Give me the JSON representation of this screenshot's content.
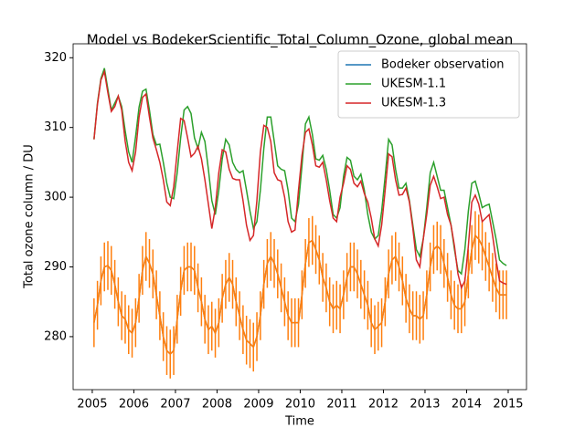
{
  "chart_data": {
    "type": "line",
    "title": "Model vs BodekerScientific_Total_Column_Ozone, global mean",
    "xlabel": "Time",
    "ylabel": "Total ozone column / DU",
    "xlim": [
      2004.54,
      2015.44
    ],
    "ylim": [
      272.4,
      322
    ],
    "xticks": [
      2005,
      2006,
      2007,
      2008,
      2009,
      2010,
      2011,
      2012,
      2013,
      2014,
      2015
    ],
    "yticks": [
      280,
      290,
      300,
      310,
      320
    ],
    "legend": "upper right",
    "x": [
      2005.042,
      2005.125,
      2005.208,
      2005.292,
      2005.375,
      2005.458,
      2005.542,
      2005.625,
      2005.708,
      2005.792,
      2005.875,
      2005.958,
      2006.042,
      2006.125,
      2006.208,
      2006.292,
      2006.375,
      2006.458,
      2006.542,
      2006.625,
      2006.708,
      2006.792,
      2006.875,
      2006.958,
      2007.042,
      2007.125,
      2007.208,
      2007.292,
      2007.375,
      2007.458,
      2007.542,
      2007.625,
      2007.708,
      2007.792,
      2007.875,
      2007.958,
      2008.042,
      2008.125,
      2008.208,
      2008.292,
      2008.375,
      2008.458,
      2008.542,
      2008.625,
      2008.708,
      2008.792,
      2008.875,
      2008.958,
      2009.042,
      2009.125,
      2009.208,
      2009.292,
      2009.375,
      2009.458,
      2009.542,
      2009.625,
      2009.708,
      2009.792,
      2009.875,
      2009.958,
      2010.042,
      2010.125,
      2010.208,
      2010.292,
      2010.375,
      2010.458,
      2010.542,
      2010.625,
      2010.708,
      2010.792,
      2010.875,
      2010.958,
      2011.042,
      2011.125,
      2011.208,
      2011.292,
      2011.375,
      2011.458,
      2011.542,
      2011.625,
      2011.708,
      2011.792,
      2011.875,
      2011.958,
      2012.042,
      2012.125,
      2012.208,
      2012.292,
      2012.375,
      2012.458,
      2012.542,
      2012.625,
      2012.708,
      2012.792,
      2012.875,
      2012.958,
      2013.042,
      2013.125,
      2013.208,
      2013.292,
      2013.375,
      2013.458,
      2013.542,
      2013.625,
      2013.708,
      2013.792,
      2013.875,
      2013.958,
      2014.042,
      2014.125,
      2014.208,
      2014.292,
      2014.375,
      2014.458,
      2014.542,
      2014.625,
      2014.708,
      2014.792,
      2014.875,
      2014.958
    ],
    "series": [
      {
        "name": "Bodeker observation",
        "color": "#1f77b4",
        "error_color": "#ff7f0e",
        "error": 3.5,
        "values": [
          282,
          284.5,
          288,
          290,
          290.2,
          289.5,
          287.5,
          285,
          283,
          282.5,
          281,
          280.5,
          282,
          285.5,
          289.5,
          291.5,
          290.5,
          289,
          286,
          283,
          280,
          278,
          277.5,
          278,
          282.5,
          286.5,
          289.5,
          290,
          290,
          289.5,
          287,
          285,
          282.5,
          281,
          281.5,
          280.5,
          282,
          285.5,
          287.5,
          288.5,
          287.5,
          285,
          283,
          281,
          279.5,
          279,
          278.5,
          280,
          283,
          287.5,
          290.5,
          291.5,
          290.5,
          289,
          287,
          285,
          283,
          282,
          282,
          282,
          286,
          290.5,
          293.5,
          293.8,
          292.5,
          291,
          288.5,
          287,
          285,
          284,
          284.5,
          284,
          286,
          288.5,
          290,
          290,
          289,
          287.5,
          286,
          284.5,
          282,
          281,
          281.5,
          282,
          285,
          289,
          291,
          291.5,
          290,
          288,
          285.5,
          284,
          283,
          283,
          282.5,
          283,
          286,
          290,
          292.5,
          293,
          292.5,
          290.5,
          288.5,
          286,
          284.5,
          284,
          284,
          285,
          289,
          292.5,
          294.5,
          294,
          293,
          291.5,
          290,
          288.5,
          287,
          286,
          286,
          286
        ]
      },
      {
        "name": "UKESM-1.1",
        "color": "#2ca02c",
        "values": [
          308.3,
          313.5,
          317,
          318.5,
          315.5,
          312.5,
          313.5,
          314.5,
          313,
          309.5,
          306.5,
          305,
          308.7,
          312.9,
          315.2,
          315.5,
          312.5,
          309,
          307.5,
          307.6,
          305,
          302,
          300,
          299.8,
          303.5,
          308.5,
          312.5,
          313,
          312,
          308.5,
          307,
          309.3,
          308,
          304,
          299.5,
          297.5,
          301,
          305.5,
          308.3,
          307.5,
          305,
          304,
          303.5,
          303.8,
          301,
          298,
          295.5,
          296.5,
          301,
          307,
          311.5,
          311.5,
          308,
          304.5,
          304,
          303.8,
          301,
          297,
          296.5,
          299,
          304.5,
          310.5,
          311.5,
          309,
          305.5,
          305.3,
          306,
          304,
          301,
          297.5,
          297,
          298.5,
          303,
          305.7,
          305.3,
          303,
          302.5,
          303.3,
          301,
          297.5,
          295,
          294,
          294.5,
          298,
          303,
          308.3,
          307.5,
          304,
          301.3,
          301.3,
          302,
          299.5,
          296,
          292.5,
          291.5,
          294,
          298.5,
          303.5,
          305,
          303,
          301,
          301,
          298.5,
          296,
          292.5,
          289.5,
          289,
          292.5,
          298,
          302,
          302.3,
          300.5,
          298.5,
          298.8,
          299,
          296.5,
          294,
          291,
          290.5,
          290.2
        ]
      },
      {
        "name": "UKESM-1.3",
        "color": "#d62728",
        "values": [
          308.3,
          313.3,
          316.8,
          318,
          315,
          312.3,
          313,
          314.5,
          312.5,
          308,
          305,
          303.8,
          306.5,
          311.5,
          314.3,
          314.8,
          311.5,
          308.5,
          306.8,
          305,
          302.5,
          299.3,
          298.8,
          301.5,
          306.5,
          311.3,
          311,
          308.5,
          305.8,
          306.3,
          307.3,
          305.5,
          302.5,
          299,
          295.5,
          298.5,
          303.5,
          306.8,
          306.5,
          304,
          302.7,
          302.5,
          302.5,
          299.5,
          296,
          293.8,
          294.5,
          299.5,
          306.5,
          310.3,
          310,
          308,
          303.5,
          302.5,
          302.3,
          300,
          296.5,
          295,
          295.3,
          301,
          306,
          309.3,
          309.8,
          307.5,
          304.5,
          304.3,
          305,
          302.5,
          299.5,
          297,
          296.5,
          300,
          302,
          304.5,
          304,
          302,
          301.5,
          302.3,
          300.5,
          299.3,
          297,
          294,
          293,
          296,
          301,
          306.2,
          305.8,
          302.5,
          300.3,
          300.4,
          301.3,
          299.3,
          295.5,
          291,
          290,
          294,
          297.5,
          301.7,
          303,
          301.5,
          299.8,
          300,
          297.5,
          296,
          293,
          289,
          287,
          288,
          293,
          299.3,
          300.3,
          299,
          296.5,
          297,
          297.5,
          294.5,
          291,
          288,
          287.7,
          287.5
        ]
      }
    ]
  }
}
